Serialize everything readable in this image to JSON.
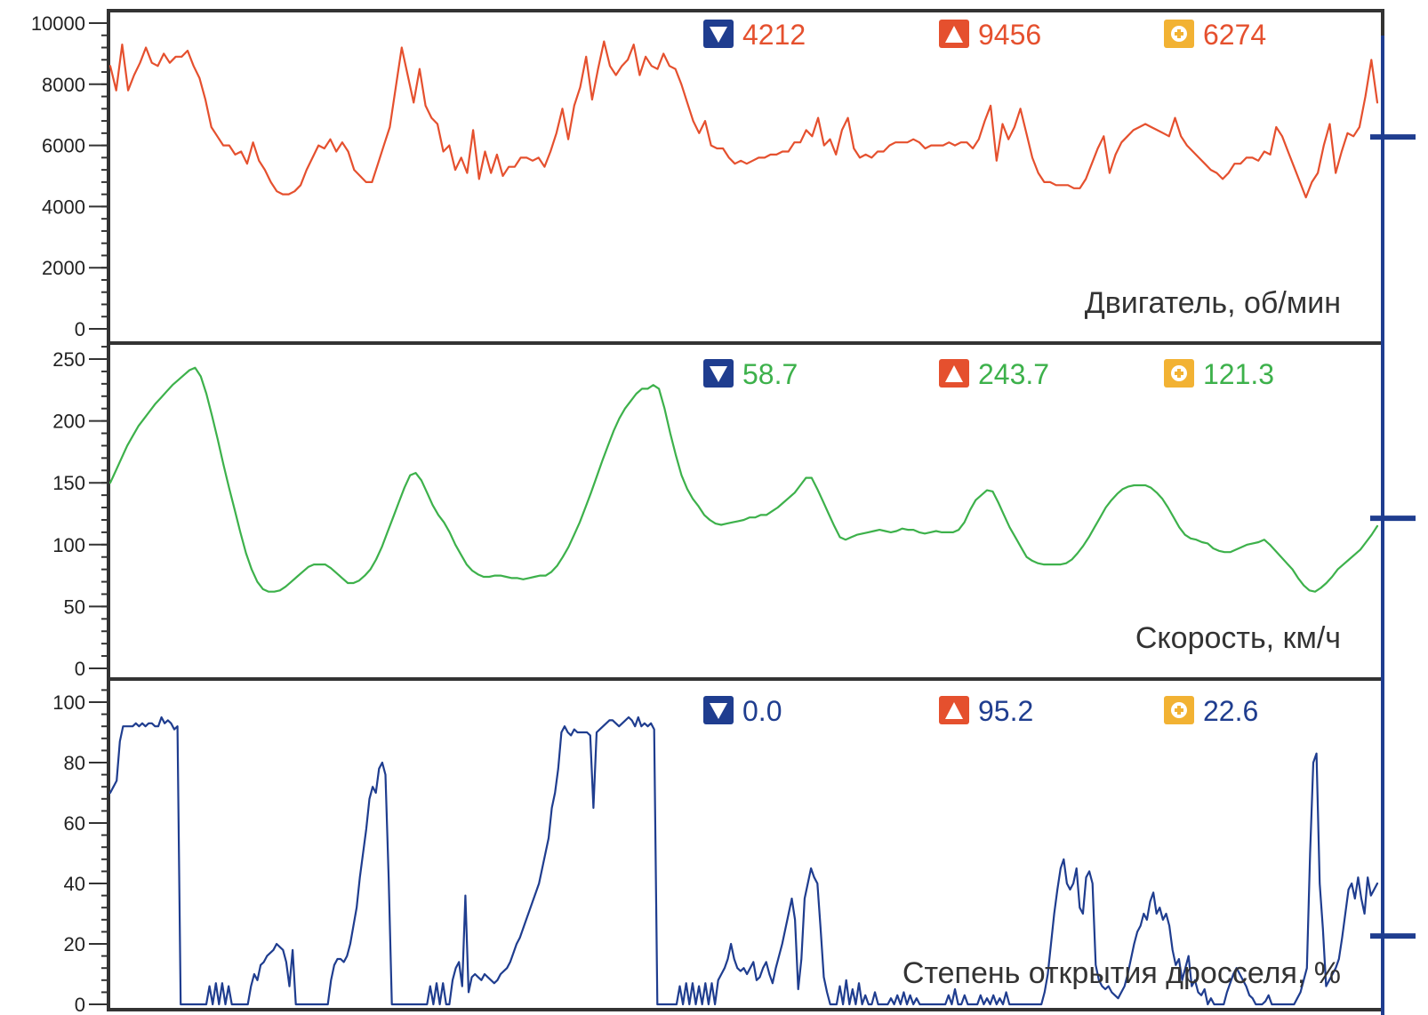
{
  "colors": {
    "rpm": "#e5502e",
    "speed": "#3db14b",
    "throttle": "#1f3d8f",
    "min_icon": "#1f3d8f",
    "max_icon": "#e5502e",
    "avg_icon": "#f2b233",
    "frame": "#333333"
  },
  "stat_icons": {
    "min": "triangle-down-icon",
    "max": "triangle-up-icon",
    "avg": "average-icon"
  },
  "chart_data": [
    {
      "type": "line",
      "ylabel": "Двигатель, об/мин",
      "ylim": [
        0,
        11000
      ],
      "yticks": [
        "0",
        "2000",
        "4000",
        "6000",
        "8000",
        "10000"
      ],
      "stats": {
        "min": "4212",
        "max": "9456",
        "avg": "6274"
      },
      "cursor_value": 6274,
      "series": [
        {
          "values": [
            8600,
            7800,
            9300,
            7800,
            8300,
            8700,
            9200,
            8700,
            8600,
            9000,
            8700,
            8900,
            8900,
            9100,
            8600,
            8200,
            7500,
            6600,
            6300,
            6000,
            6000,
            5700,
            5800,
            5400,
            6100,
            5500,
            5200,
            4800,
            4500,
            4400,
            4400,
            4500,
            4700,
            5200,
            5600,
            6000,
            5900,
            6200,
            5800,
            6100,
            5800,
            5200,
            5000,
            4800,
            4800,
            5400,
            6000,
            6600,
            7900,
            9200,
            8300,
            7400,
            8500,
            7300,
            6900,
            6700,
            5800,
            6000,
            5200,
            5600,
            5100,
            6500,
            4900,
            5800,
            5100,
            5700,
            5000,
            5300,
            5300,
            5600,
            5600,
            5500,
            5600,
            5300,
            5800,
            6400,
            7200,
            6200,
            7300,
            7900,
            8900,
            7500,
            8500,
            9400,
            8600,
            8300,
            8600,
            8800,
            9300,
            8300,
            8900,
            8600,
            8500,
            9000,
            8600,
            8500,
            8000,
            7400,
            6800,
            6400,
            6800,
            6000,
            5900,
            5900,
            5600,
            5400,
            5500,
            5400,
            5500,
            5600,
            5600,
            5700,
            5700,
            5800,
            5800,
            6100,
            6100,
            6500,
            6300,
            6900,
            6000,
            6200,
            5700,
            6500,
            6900,
            5900,
            5600,
            5700,
            5600,
            5800,
            5800,
            6000,
            6100,
            6100,
            6100,
            6200,
            6100,
            5900,
            6000,
            6000,
            6000,
            6100,
            6000,
            6100,
            6100,
            5900,
            6200,
            6800,
            7300,
            5500,
            6700,
            6200,
            6600,
            7200,
            6400,
            5600,
            5100,
            4800,
            4800,
            4700,
            4700,
            4700,
            4600,
            4600,
            4900,
            5400,
            5900,
            6300,
            5100,
            5700,
            6100,
            6300,
            6500,
            6600,
            6700,
            6600,
            6500,
            6400,
            6300,
            6900,
            6300,
            6000,
            5800,
            5600,
            5400,
            5200,
            5100,
            4900,
            5100,
            5400,
            5400,
            5600,
            5600,
            5500,
            5800,
            5700,
            6600,
            6300,
            5800,
            5300,
            4800,
            4300,
            4800,
            5100,
            6000,
            6700,
            5100,
            5800,
            6400,
            6300,
            6600,
            7600,
            8800,
            7400
          ]
        }
      ]
    },
    {
      "type": "line",
      "ylabel": "Скорость, км/ч",
      "ylim": [
        0,
        290
      ],
      "yticks": [
        "0",
        "50",
        "100",
        "150",
        "200",
        "250"
      ],
      "stats": {
        "min": "58.7",
        "max": "243.7",
        "avg": "121.3"
      },
      "cursor_value": 121.3,
      "series": [
        {
          "values": [
            150,
            160,
            170,
            180,
            188,
            196,
            202,
            208,
            214,
            219,
            224,
            229,
            233,
            237,
            241,
            243,
            236,
            222,
            204,
            185,
            165,
            146,
            128,
            110,
            93,
            80,
            70,
            64,
            62,
            62,
            63,
            66,
            70,
            74,
            78,
            82,
            84,
            84,
            84,
            81,
            77,
            73,
            69,
            69,
            71,
            75,
            80,
            88,
            98,
            110,
            122,
            134,
            146,
            156,
            158,
            152,
            142,
            132,
            124,
            118,
            110,
            100,
            92,
            84,
            79,
            76,
            74,
            74,
            75,
            75,
            74,
            73,
            73,
            72,
            73,
            74,
            75,
            75,
            78,
            83,
            90,
            98,
            108,
            118,
            130,
            142,
            155,
            168,
            180,
            192,
            202,
            210,
            216,
            222,
            226,
            226,
            229,
            226,
            210,
            190,
            172,
            156,
            145,
            137,
            131,
            124,
            120,
            117,
            116,
            117,
            118,
            119,
            120,
            122,
            122,
            124,
            124,
            127,
            130,
            134,
            138,
            142,
            148,
            154,
            154,
            145,
            135,
            125,
            115,
            106,
            104,
            106,
            108,
            109,
            110,
            111,
            112,
            111,
            110,
            111,
            113,
            112,
            112,
            110,
            109,
            110,
            111,
            110,
            110,
            110,
            112,
            118,
            128,
            136,
            140,
            144,
            143,
            134,
            124,
            114,
            106,
            98,
            90,
            87,
            85,
            84,
            84,
            84,
            84,
            85,
            88,
            93,
            99,
            106,
            114,
            122,
            130,
            136,
            141,
            145,
            147,
            148,
            148,
            148,
            146,
            142,
            137,
            130,
            122,
            114,
            108,
            105,
            104,
            102,
            101,
            97,
            95,
            94,
            94,
            96,
            98,
            100,
            101,
            102,
            104,
            100,
            95,
            90,
            85,
            80,
            73,
            67,
            63,
            62,
            65,
            69,
            74,
            80,
            84,
            88,
            92,
            96,
            102,
            108,
            115
          ]
        }
      ]
    },
    {
      "type": "line",
      "ylabel": "Степень открытия дросселя, %",
      "ylim": [
        0,
        102
      ],
      "yticks": [
        "0",
        "20",
        "40",
        "60",
        "80",
        "100"
      ],
      "stats": {
        "min": "0.0",
        "max": "95.2",
        "avg": "22.6"
      },
      "cursor_value": 22.6,
      "series": [
        {
          "values": [
            70,
            72,
            74,
            87,
            92,
            92,
            92,
            92,
            93,
            92,
            93,
            92,
            93,
            93,
            92,
            92,
            95,
            93,
            94,
            93,
            91,
            92,
            0,
            0,
            0,
            0,
            0,
            0,
            0,
            0,
            0,
            6,
            0,
            7,
            0,
            7,
            0,
            6,
            0,
            0,
            0,
            0,
            0,
            0,
            6,
            10,
            8,
            13,
            14,
            16,
            17,
            18,
            20,
            19,
            18,
            14,
            6,
            18,
            0,
            0,
            0,
            0,
            0,
            0,
            0,
            0,
            0,
            0,
            0,
            8,
            13,
            15,
            15,
            14,
            16,
            20,
            26,
            32,
            42,
            50,
            58,
            68,
            72,
            70,
            78,
            80,
            76,
            42,
            0,
            0,
            0,
            0,
            0,
            0,
            0,
            0,
            0,
            0,
            0,
            0,
            6,
            0,
            7,
            0,
            7,
            0,
            0,
            8,
            12,
            14,
            6,
            36,
            4,
            9,
            10,
            9,
            8,
            10,
            9,
            8,
            7,
            8,
            10,
            11,
            12,
            14,
            17,
            20,
            22,
            25,
            28,
            31,
            34,
            37,
            40,
            45,
            50,
            55,
            65,
            70,
            78,
            90,
            92,
            90,
            89,
            91,
            90,
            90,
            90,
            90,
            89,
            65,
            90,
            91,
            92,
            93,
            94,
            94,
            93,
            92,
            93,
            94,
            95,
            94,
            92,
            95,
            92,
            93,
            92,
            93,
            91,
            0,
            0,
            0,
            0,
            0,
            0,
            0,
            6,
            0,
            7,
            0,
            7,
            0,
            6,
            0,
            7,
            0,
            7,
            0,
            8,
            10,
            12,
            15,
            20,
            15,
            12,
            11,
            12,
            10,
            12,
            14,
            8,
            9,
            12,
            14,
            10,
            7,
            12,
            16,
            20,
            25,
            30,
            35,
            28,
            5,
            15,
            35,
            40,
            45,
            42,
            40,
            25,
            9,
            4,
            0,
            0,
            0,
            6,
            0,
            8,
            0,
            5,
            0,
            7,
            0,
            3,
            0,
            0,
            4,
            0,
            0,
            0,
            0,
            2,
            0,
            3,
            0,
            4,
            0,
            3,
            0,
            2,
            0,
            0,
            0,
            0,
            0,
            0,
            0,
            0,
            0,
            3,
            0,
            5,
            0,
            0,
            3,
            0,
            0,
            0,
            0,
            3,
            0,
            2,
            0,
            3,
            0,
            2,
            0,
            4,
            0,
            0,
            0,
            0,
            0,
            0,
            0,
            0,
            0,
            0,
            0,
            4,
            10,
            20,
            30,
            38,
            45,
            48,
            40,
            38,
            40,
            45,
            32,
            30,
            42,
            44,
            40,
            13,
            8,
            6,
            5,
            6,
            4,
            3,
            2,
            4,
            6,
            10,
            15,
            20,
            24,
            26,
            30,
            28,
            34,
            37,
            30,
            32,
            28,
            30,
            26,
            18,
            13,
            15,
            8,
            12,
            16,
            6,
            8,
            4,
            3,
            5,
            0,
            2,
            0,
            0,
            0,
            0,
            4,
            7,
            10,
            12,
            10,
            8,
            6,
            3,
            2,
            0,
            0,
            0,
            1,
            3,
            0,
            0,
            0,
            0,
            0,
            0,
            0,
            0,
            2,
            4,
            8,
            12,
            50,
            80,
            83,
            40,
            25,
            6,
            8,
            10,
            12,
            15,
            22,
            30,
            38,
            40,
            35,
            42,
            35,
            30,
            42,
            36,
            38,
            40
          ]
        }
      ]
    }
  ]
}
